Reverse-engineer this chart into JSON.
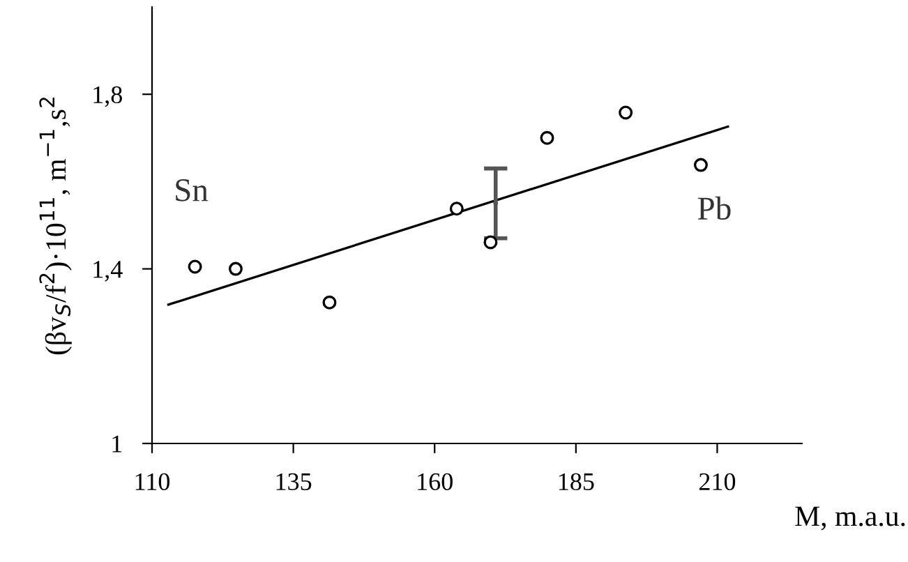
{
  "chart_data": {
    "type": "scatter",
    "xlabel": "M, m.a.u.",
    "ylabel": "(βv$_{S}$/f$^{2}$)·10$^{11}$, m$^{−1}$,s$^{2}$",
    "xlim": [
      110,
      225
    ],
    "xticks": [
      110,
      135,
      160,
      185,
      210
    ],
    "ylim": [
      1,
      2
    ],
    "yticks": [
      1,
      {
        "value": 1.4,
        "label": "1,4"
      },
      {
        "value": 1.8,
        "label": "1,8"
      }
    ],
    "grid": false,
    "legend": false,
    "marker": "circle",
    "series": [
      {
        "color": "#000000",
        "x": [
          117.6,
          124.8,
          141.4,
          163.9,
          169.9,
          179.9,
          193.8,
          207.1
        ],
        "values": [
          1.405,
          1.4,
          1.323,
          1.538,
          1.461,
          1.7,
          1.758,
          1.638
        ]
      },
      {
        "type": "line",
        "color": "#000000",
        "marker": "none",
        "line_style": "solid",
        "x": [
          112.9,
          211.9
        ],
        "values": [
          1.318,
          1.726
        ]
      },
      {
        "color": "#555555",
        "marker": "circle",
        "x": [
          170.8
        ],
        "values": [
          1.55
        ],
        "errors": [
          0.08
        ]
      }
    ],
    "annotations": [
      {
        "text": "Sn",
        "x": 117.6,
        "y": 1.405
      },
      {
        "text": "Pb",
        "x": 207.1,
        "y": 1.638
      }
    ]
  }
}
